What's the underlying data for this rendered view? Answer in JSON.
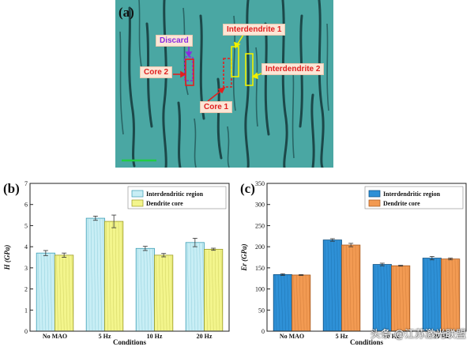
{
  "figure": {
    "panel_a": {
      "letter": "(a)",
      "labels": {
        "discard": "Discard",
        "core2": "Core 2",
        "core1": "Core 1",
        "interdendrite1": "Interdendrite 1",
        "interdendrite2": "Interdendrite 2"
      },
      "colors": {
        "discard": "#8a2be2",
        "core": "#e02020",
        "interdendrite": "#f0f000",
        "background": "#4aa7a3"
      }
    },
    "watermark": "头条 @江苏激光联盟"
  },
  "chart_data": [
    {
      "panel": "(b)",
      "type": "bar",
      "categories": [
        "No MAO",
        "5 Hz",
        "10 Hz",
        "20 Hz"
      ],
      "series": [
        {
          "name": "Interdendritic region",
          "values": [
            3.7,
            5.35,
            3.92,
            4.2
          ],
          "errors": [
            0.12,
            0.1,
            0.1,
            0.2
          ],
          "color": "#c8eef5",
          "stroke": "#3a9db5"
        },
        {
          "name": "Dendrite core",
          "values": [
            3.6,
            5.2,
            3.6,
            3.88
          ],
          "errors": [
            0.1,
            0.3,
            0.08,
            0.05
          ],
          "color": "#f3f58c",
          "stroke": "#9a9a20"
        }
      ],
      "xlabel": "Conditions",
      "ylabel": "H (GPa)",
      "ylim": [
        0,
        7
      ],
      "yticks": [
        0,
        1,
        2,
        3,
        4,
        5,
        6,
        7
      ],
      "legend": "top-right"
    },
    {
      "panel": "(c)",
      "type": "bar",
      "categories": [
        "No MAO",
        "5 Hz",
        "10 Hz",
        "20 Hz"
      ],
      "series": [
        {
          "name": "Interdendritic region",
          "values": [
            134,
            216,
            158,
            173
          ],
          "errors": [
            2,
            3,
            3,
            4
          ],
          "color": "#2e90d6",
          "stroke": "#0a4d80"
        },
        {
          "name": "Dendrite core",
          "values": [
            133,
            204,
            155,
            171
          ],
          "errors": [
            1,
            4,
            1,
            2
          ],
          "color": "#f29a52",
          "stroke": "#a3541a"
        }
      ],
      "xlabel": "Conditions",
      "ylabel": "Er (GPa)",
      "ylim": [
        0,
        350
      ],
      "yticks": [
        0,
        50,
        100,
        150,
        200,
        250,
        300,
        350
      ],
      "legend": "top-right"
    }
  ]
}
